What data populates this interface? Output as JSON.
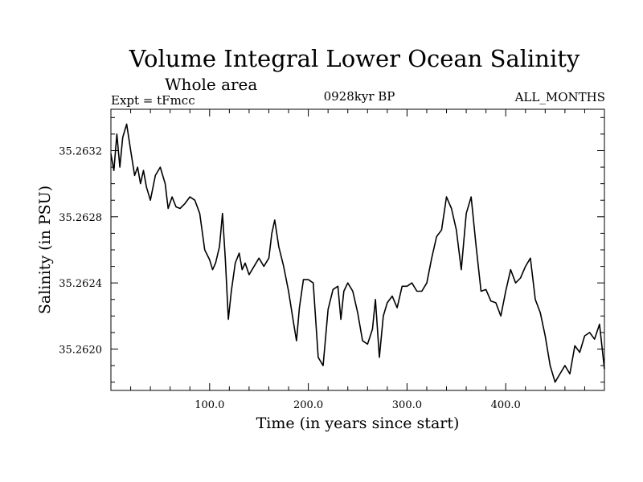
{
  "chart_data": {
    "type": "line",
    "title": "Volume Integral Lower Ocean Salinity",
    "subtitle": "Whole area",
    "experiment": "Expt = tFmcc",
    "period": "0928kyr BP",
    "months": "ALL_MONTHS",
    "xlabel": "Time (in years since start)",
    "ylabel": "Salinity (in PSU)",
    "xlim": [
      0,
      500
    ],
    "ylim": [
      35.26175,
      35.26345
    ],
    "x_ticks": [
      100,
      200,
      300,
      400
    ],
    "x_tick_labels": [
      "100.0",
      "200.0",
      "300.0",
      "400.0"
    ],
    "y_ticks": [
      35.262,
      35.2624,
      35.2628,
      35.2632
    ],
    "y_tick_labels": [
      "35.2620",
      "35.2624",
      "35.2628",
      "35.2632"
    ],
    "grid": false,
    "series": [
      {
        "name": "Salinity",
        "x": [
          0,
          3,
          6,
          9,
          12,
          16,
          20,
          24,
          27,
          30,
          33,
          36,
          40,
          45,
          50,
          55,
          58,
          62,
          66,
          70,
          75,
          80,
          85,
          90,
          95,
          100,
          103,
          106,
          110,
          113,
          116,
          119,
          122,
          126,
          130,
          133,
          136,
          140,
          145,
          150,
          155,
          160,
          163,
          166,
          170,
          175,
          180,
          185,
          188,
          191,
          195,
          200,
          205,
          210,
          215,
          220,
          225,
          230,
          233,
          236,
          240,
          245,
          250,
          255,
          260,
          265,
          268,
          272,
          276,
          280,
          285,
          290,
          295,
          300,
          305,
          310,
          315,
          320,
          325,
          330,
          335,
          340,
          345,
          350,
          355,
          360,
          365,
          370,
          375,
          380,
          385,
          390,
          395,
          400,
          405,
          410,
          415,
          420,
          425,
          430,
          435,
          440,
          445,
          450,
          455,
          460,
          465,
          470,
          475,
          480,
          485,
          490,
          495,
          500
        ],
        "values": [
          35.26318,
          35.26308,
          35.2633,
          35.2631,
          35.26328,
          35.26336,
          35.2632,
          35.26305,
          35.2631,
          35.263,
          35.26308,
          35.26298,
          35.2629,
          35.26305,
          35.2631,
          35.263,
          35.26285,
          35.26292,
          35.26286,
          35.26285,
          35.26288,
          35.26292,
          35.2629,
          35.26282,
          35.2626,
          35.26254,
          35.26248,
          35.26252,
          35.26262,
          35.26282,
          35.26254,
          35.26218,
          35.26235,
          35.26252,
          35.26258,
          35.26248,
          35.26252,
          35.26245,
          35.2625,
          35.26255,
          35.2625,
          35.26255,
          35.2627,
          35.26278,
          35.26262,
          35.2625,
          35.26235,
          35.26216,
          35.26205,
          35.26225,
          35.26242,
          35.26242,
          35.2624,
          35.26195,
          35.2619,
          35.26224,
          35.26236,
          35.26238,
          35.26218,
          35.26235,
          35.2624,
          35.26235,
          35.26222,
          35.26205,
          35.26203,
          35.26212,
          35.2623,
          35.26195,
          35.2622,
          35.26228,
          35.26232,
          35.26225,
          35.26238,
          35.26238,
          35.2624,
          35.26235,
          35.26235,
          35.2624,
          35.26255,
          35.26268,
          35.26272,
          35.26292,
          35.26285,
          35.26272,
          35.26248,
          35.26282,
          35.26292,
          35.26262,
          35.26235,
          35.26236,
          35.26229,
          35.26228,
          35.2622,
          35.26235,
          35.26248,
          35.2624,
          35.26243,
          35.2625,
          35.26255,
          35.2623,
          35.26222,
          35.26208,
          35.2619,
          35.2618,
          35.26185,
          35.2619,
          35.26185,
          35.26202,
          35.26198,
          35.26208,
          35.2621,
          35.26206,
          35.26215,
          35.26188
        ]
      }
    ]
  }
}
